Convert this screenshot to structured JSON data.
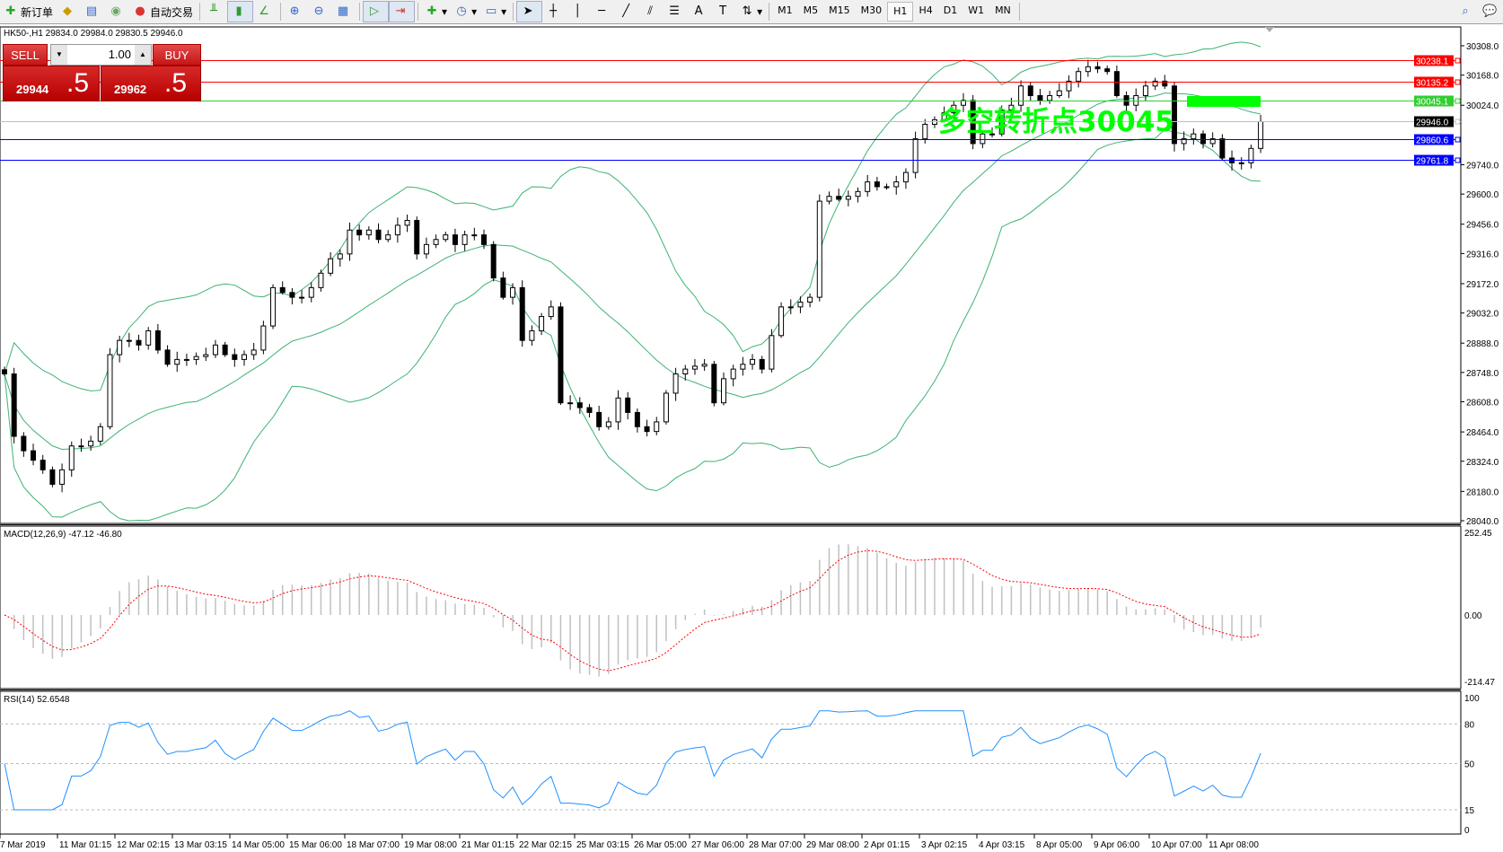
{
  "toolbar": {
    "new_order": "新订单",
    "auto_trading": "自动交易",
    "timeframes": [
      "M1",
      "M5",
      "M15",
      "M30",
      "H1",
      "H4",
      "D1",
      "W1",
      "MN"
    ],
    "active_timeframe": "H1",
    "icons": [
      "expert-icon",
      "navigator-icon",
      "signals-icon",
      "bar-chart-icon",
      "candlestick-icon",
      "line-chart-icon",
      "zoom-in-icon",
      "zoom-out-icon",
      "tile-windows-icon",
      "autoscroll-icon",
      "chart-shift-icon",
      "indicators-icon",
      "periods-icon",
      "templates-icon",
      "cursor-icon",
      "crosshair-icon",
      "vertical-line-icon",
      "horizontal-line-icon",
      "trendline-icon",
      "fibonacci-icon",
      "channel-icon",
      "text-icon",
      "text-label-icon",
      "arrows-icon",
      "search-icon",
      "chat-icon"
    ]
  },
  "chart": {
    "symbol_info": "HK50-,H1  29834.0 29984.0 29830.5 29946.0",
    "annotation": "多空转折点30045",
    "annotation_color": "#00ff00",
    "one_click": {
      "sell": "SELL",
      "buy": "BUY",
      "lot": "1.00",
      "sell_big": "29944",
      "sell_small": ".5",
      "buy_big": "29962",
      "buy_small": ".5"
    },
    "hlines": [
      {
        "price": 30238.1,
        "label": "30238.1",
        "color": "#ff0000"
      },
      {
        "price": 30135.2,
        "label": "30135.2",
        "color": "#ff0000"
      },
      {
        "price": 30045.1,
        "label": "30045.1",
        "color": "#32cd32"
      },
      {
        "price": 29946.0,
        "label": "29946.0",
        "color": "#c0c0c0",
        "tag": "#000000"
      },
      {
        "price": 29860.6,
        "label": "29860.6",
        "color": "#0000ff"
      },
      {
        "price": 29761.8,
        "label": "29761.8",
        "color": "#0000ff"
      }
    ],
    "macd_label": "MACD(12,26,9) -47.12 -46.80",
    "rsi_label": "RSI(14) 52.6548"
  },
  "chart_data": {
    "type": "candlestick",
    "price_axis": {
      "ticks": [
        "30308.0",
        "30168.0",
        "30024.0",
        "29740.0",
        "29600.0",
        "29456.0",
        "29316.0",
        "29172.0",
        "29032.0",
        "28888.0",
        "28748.0",
        "28608.0",
        "28464.0",
        "28324.0",
        "28180.0",
        "28040.0"
      ],
      "range": [
        28040,
        30308
      ]
    },
    "time_labels": [
      "7 Mar 2019",
      "11 Mar 01:15",
      "12 Mar 02:15",
      "13 Mar 03:15",
      "14 Mar 05:00",
      "15 Mar 06:00",
      "18 Mar 07:00",
      "19 Mar 08:00",
      "21 Mar 01:15",
      "22 Mar 02:15",
      "25 Mar 03:15",
      "26 Mar 05:00",
      "27 Mar 06:00",
      "28 Mar 07:00",
      "29 Mar 08:00",
      "2 Apr 01:15",
      "3 Apr 02:15",
      "4 Apr 03:15",
      "8 Apr 05:00",
      "9 Apr 06:00",
      "10 Apr 07:00",
      "11 Apr 08:00"
    ],
    "closes": [
      28741,
      28443,
      28374,
      28329,
      28283,
      28214,
      28283,
      28397,
      28397,
      28420,
      28489,
      28833,
      28901,
      28901,
      28879,
      28947,
      28855,
      28787,
      28810,
      28810,
      28824,
      28833,
      28879,
      28833,
      28810,
      28833,
      28855,
      28970,
      29153,
      29130,
      29107,
      29107,
      29153,
      29222,
      29291,
      29314,
      29428,
      29405,
      29428,
      29383,
      29405,
      29451,
      29474,
      29314,
      29359,
      29383,
      29405,
      29359,
      29405,
      29405,
      29359,
      29199,
      29107,
      29153,
      28901,
      28947,
      29015,
      29061,
      28603,
      28603,
      28580,
      28557,
      28489,
      28512,
      28626,
      28557,
      28489,
      28466,
      28512,
      28649,
      28741,
      28764,
      28778,
      28787,
      28603,
      28718,
      28764,
      28787,
      28810,
      28764,
      28924,
      29061,
      29061,
      29084,
      29107,
      29566,
      29589,
      29575,
      29589,
      29612,
      29658,
      29635,
      29635,
      29658,
      29703,
      29864,
      29933,
      29955,
      29988,
      30024,
      30047,
      29841,
      29887,
      29887,
      30001,
      30024,
      30116,
      30070,
      30047,
      30070,
      30093,
      30139,
      30185,
      30208,
      30198,
      30185,
      30070,
      30024,
      30070,
      30116,
      30139,
      30116,
      29841,
      29864,
      29887,
      29841,
      29864,
      29772,
      29749,
      29749,
      29818,
      29946
    ],
    "indicators": {
      "bollinger": {
        "period": 20,
        "deviations": 2,
        "color": "#3cb371"
      },
      "macd": {
        "fast": 12,
        "slow": 26,
        "signal": 9,
        "range": [
          -214.47,
          252.45
        ],
        "ticks": [
          "252.45",
          "0.00",
          "-214.47"
        ],
        "main_color": "#c0c0c0",
        "signal_color": "#ff0000"
      },
      "rsi": {
        "period": 14,
        "range": [
          0,
          100
        ],
        "levels": [
          80,
          50,
          15
        ],
        "ticks": [
          "100",
          "80",
          "50",
          "15",
          "0"
        ],
        "color": "#1e90ff"
      }
    }
  }
}
